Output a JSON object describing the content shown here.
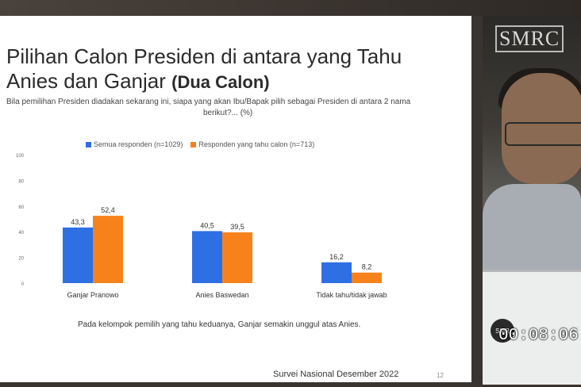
{
  "slide": {
    "title_line1": "Pilihan Calon Presiden di antara yang Tahu",
    "title_line2_plain": "Anies dan Ganjar ",
    "title_line2_bold": "(Dua Calon)",
    "question_line1": "Bila pemilihan Presiden diadakan sekarang ini, siapa yang akan Ibu/Bapak pilih sebagai Presiden di antara 2 nama",
    "question_line2": "berikut?... (%)",
    "note": "Pada kelompok pemilih yang tahu keduanya, Ganjar semakin unggul atas Anies.",
    "footer": "Survei Nasional Desember 2022",
    "page_number": "12"
  },
  "video": {
    "logo_text": "SMRC",
    "watermark_text": "SMR",
    "timer": "00:08:06"
  },
  "chart_data": {
    "type": "bar",
    "categories": [
      "Ganjar Pranowo",
      "Anies Baswedan",
      "Tidak tahu/tidak jawab"
    ],
    "series": [
      {
        "name": "Semua responden (n=1029)",
        "values": [
          43.3,
          40.5,
          16.2
        ],
        "labels": [
          "43,3",
          "40,5",
          "16,2"
        ],
        "color": "#2f6fe4"
      },
      {
        "name": "Responden yang tahu calon (n=713)",
        "values": [
          52.4,
          39.5,
          8.2
        ],
        "labels": [
          "52,4",
          "39,5",
          "8,2"
        ],
        "color": "#f7821c"
      }
    ],
    "yticks": [
      "0",
      "20",
      "40",
      "60",
      "80",
      "100"
    ],
    "ylim": [
      0,
      100
    ],
    "legend_position": "top",
    "grid": false
  }
}
